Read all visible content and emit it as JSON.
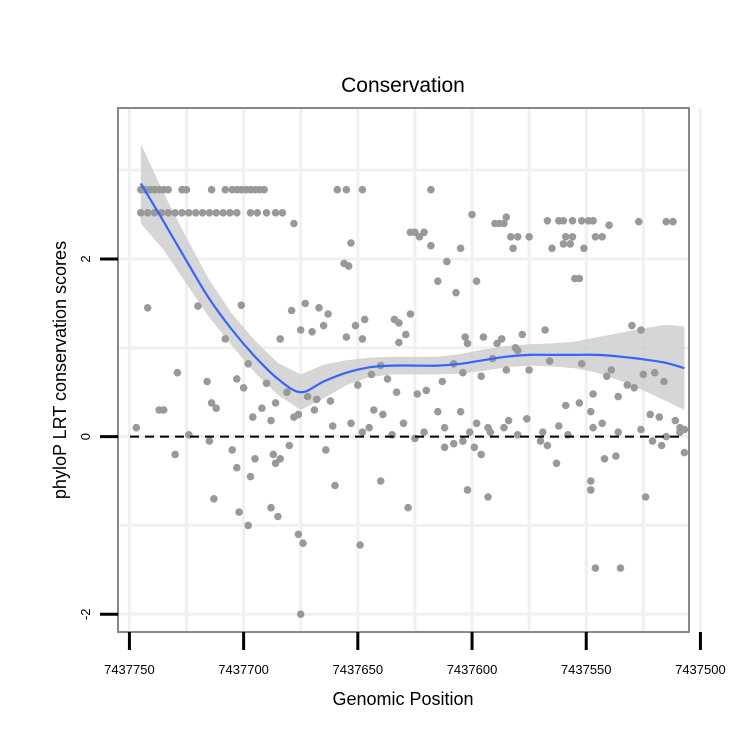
{
  "chart_data": {
    "type": "scatter",
    "title": "Conservation",
    "xlabel": "Genomic Position",
    "ylabel": "phyloP LRT conservation scores",
    "xlim": [
      7437755,
      7437505
    ],
    "ylim": [
      -2.2,
      3.7
    ],
    "x_reversed": true,
    "grid": true,
    "reference_line": {
      "y": 0,
      "style": "dashed",
      "color": "#000000"
    },
    "x_ticks": [
      7437750,
      7437700,
      7437650,
      7437600,
      7437550,
      7437500
    ],
    "x_tick_labels": [
      "7437750",
      "7437700",
      "7437650",
      "7437600",
      "7437550",
      "7437500"
    ],
    "y_ticks": [
      -2,
      0,
      2
    ],
    "y_tick_labels": [
      "-2",
      "0",
      "2"
    ],
    "colors": {
      "points": "#999999",
      "smooth_line": "#3366ff",
      "confidence_band": "#cccccc",
      "panel_border": "#888888",
      "grid": "#f0f0f0"
    },
    "smooth": {
      "x": [
        7437745,
        7437735,
        7437725,
        7437715,
        7437705,
        7437695,
        7437685,
        7437675,
        7437665,
        7437655,
        7437645,
        7437635,
        7437625,
        7437615,
        7437605,
        7437595,
        7437585,
        7437575,
        7437565,
        7437555,
        7437545,
        7437535,
        7437525,
        7437515,
        7437507
      ],
      "y": [
        2.85,
        2.42,
        1.98,
        1.55,
        1.2,
        0.9,
        0.65,
        0.5,
        0.62,
        0.72,
        0.78,
        0.8,
        0.8,
        0.8,
        0.82,
        0.86,
        0.9,
        0.92,
        0.92,
        0.92,
        0.92,
        0.9,
        0.87,
        0.83,
        0.77
      ],
      "lower": [
        2.4,
        2.1,
        1.72,
        1.34,
        1.02,
        0.72,
        0.47,
        0.3,
        0.43,
        0.58,
        0.67,
        0.7,
        0.7,
        0.7,
        0.71,
        0.74,
        0.78,
        0.8,
        0.79,
        0.77,
        0.72,
        0.63,
        0.52,
        0.4,
        0.3
      ],
      "upper": [
        3.3,
        2.74,
        2.24,
        1.76,
        1.38,
        1.08,
        0.83,
        0.7,
        0.81,
        0.86,
        0.89,
        0.9,
        0.9,
        0.9,
        0.93,
        0.98,
        1.02,
        1.04,
        1.05,
        1.07,
        1.12,
        1.17,
        1.22,
        1.26,
        1.24
      ]
    },
    "points": [
      [
        7437745,
        2.78
      ],
      [
        7437743,
        2.78
      ],
      [
        7437741,
        2.78
      ],
      [
        7437739,
        2.78
      ],
      [
        7437737,
        2.78
      ],
      [
        7437735,
        2.78
      ],
      [
        7437733,
        2.78
      ],
      [
        7437727,
        2.78
      ],
      [
        7437725,
        2.78
      ],
      [
        7437714,
        2.78
      ],
      [
        7437708,
        2.78
      ],
      [
        7437705,
        2.78
      ],
      [
        7437703,
        2.78
      ],
      [
        7437701,
        2.78
      ],
      [
        7437699,
        2.78
      ],
      [
        7437697,
        2.78
      ],
      [
        7437695,
        2.78
      ],
      [
        7437693,
        2.78
      ],
      [
        7437691,
        2.78
      ],
      [
        7437659,
        2.78
      ],
      [
        7437648,
        2.78
      ],
      [
        7437618,
        2.78
      ],
      [
        7437745,
        2.52
      ],
      [
        7437742,
        2.52
      ],
      [
        7437739,
        2.52
      ],
      [
        7437736,
        2.52
      ],
      [
        7437733,
        2.52
      ],
      [
        7437730,
        2.52
      ],
      [
        7437727,
        2.52
      ],
      [
        7437724,
        2.52
      ],
      [
        7437721,
        2.52
      ],
      [
        7437718,
        2.52
      ],
      [
        7437715,
        2.52
      ],
      [
        7437712,
        2.52
      ],
      [
        7437709,
        2.52
      ],
      [
        7437706,
        2.52
      ],
      [
        7437703,
        2.52
      ],
      [
        7437697,
        2.52
      ],
      [
        7437694,
        2.52
      ],
      [
        7437690,
        2.52
      ],
      [
        7437686,
        2.52
      ],
      [
        7437683,
        2.52
      ],
      [
        7437527,
        2.42
      ],
      [
        7437515,
        2.42
      ],
      [
        7437512,
        2.42
      ],
      [
        7437655,
        2.78
      ],
      [
        7437585,
        2.47
      ],
      [
        7437567,
        2.43
      ],
      [
        7437562,
        2.43
      ],
      [
        7437560,
        2.43
      ],
      [
        7437556,
        2.43
      ],
      [
        7437552,
        2.43
      ],
      [
        7437549,
        2.43
      ],
      [
        7437547,
        2.43
      ],
      [
        7437600,
        2.5
      ],
      [
        7437590,
        2.4
      ],
      [
        7437588,
        2.4
      ],
      [
        7437586,
        2.4
      ],
      [
        7437540,
        2.38
      ],
      [
        7437627,
        2.3
      ],
      [
        7437625,
        2.3
      ],
      [
        7437621,
        2.3
      ],
      [
        7437678,
        2.4
      ],
      [
        7437546,
        2.25
      ],
      [
        7437543,
        2.25
      ],
      [
        7437618,
        2.15
      ],
      [
        7437623,
        2.25
      ],
      [
        7437583,
        2.25
      ],
      [
        7437580,
        2.25
      ],
      [
        7437575,
        2.25
      ],
      [
        7437559,
        2.25
      ],
      [
        7437556,
        2.25
      ],
      [
        7437557,
        2.17
      ],
      [
        7437560,
        2.17
      ],
      [
        7437605,
        2.12
      ],
      [
        7437565,
        2.12
      ],
      [
        7437653,
        2.18
      ],
      [
        7437582,
        2.12
      ],
      [
        7437551,
        2.12
      ],
      [
        7437611,
        1.97
      ],
      [
        7437656,
        1.95
      ],
      [
        7437654,
        1.92
      ],
      [
        7437555,
        1.78
      ],
      [
        7437553,
        1.78
      ],
      [
        7437615,
        1.75
      ],
      [
        7437598,
        1.75
      ],
      [
        7437607,
        1.62
      ],
      [
        7437679,
        1.42
      ],
      [
        7437673,
        1.5
      ],
      [
        7437667,
        1.45
      ],
      [
        7437701,
        1.48
      ],
      [
        7437720,
        1.47
      ],
      [
        7437742,
        1.45
      ],
      [
        7437663,
        1.38
      ],
      [
        7437627,
        1.38
      ],
      [
        7437634,
        1.32
      ],
      [
        7437665,
        1.25
      ],
      [
        7437655,
        1.12
      ],
      [
        7437684,
        1.1
      ],
      [
        7437675,
        1.2
      ],
      [
        7437670,
        1.18
      ],
      [
        7437629,
        1.15
      ],
      [
        7437632,
        1.28
      ],
      [
        7437651,
        1.25
      ],
      [
        7437647,
        1.32
      ],
      [
        7437648,
        1.1
      ],
      [
        7437632,
        1.06
      ],
      [
        7437602,
        1.05
      ],
      [
        7437603,
        1.12
      ],
      [
        7437578,
        1.15
      ],
      [
        7437587,
        1.1
      ],
      [
        7437568,
        1.2
      ],
      [
        7437595,
        1.12
      ],
      [
        7437589,
        1.05
      ],
      [
        7437580,
        0.97
      ],
      [
        7437530,
        1.25
      ],
      [
        7437526,
        1.2
      ],
      [
        7437581,
        1.0
      ],
      [
        7437708,
        1.1
      ],
      [
        7437698,
        0.82
      ],
      [
        7437703,
        0.65
      ],
      [
        7437700,
        0.55
      ],
      [
        7437690,
        0.6
      ],
      [
        7437681,
        0.5
      ],
      [
        7437672,
        0.45
      ],
      [
        7437668,
        0.42
      ],
      [
        7437662,
        0.4
      ],
      [
        7437640,
        0.8
      ],
      [
        7437644,
        0.7
      ],
      [
        7437650,
        0.58
      ],
      [
        7437637,
        0.65
      ],
      [
        7437633,
        0.5
      ],
      [
        7437620,
        0.52
      ],
      [
        7437624,
        0.48
      ],
      [
        7437613,
        0.62
      ],
      [
        7437608,
        0.82
      ],
      [
        7437604,
        0.72
      ],
      [
        7437596,
        0.68
      ],
      [
        7437591,
        0.88
      ],
      [
        7437585,
        0.75
      ],
      [
        7437575,
        0.75
      ],
      [
        7437566,
        0.85
      ],
      [
        7437552,
        0.82
      ],
      [
        7437541,
        0.68
      ],
      [
        7437539,
        0.75
      ],
      [
        7437525,
        0.7
      ],
      [
        7437520,
        0.72
      ],
      [
        7437516,
        0.62
      ],
      [
        7437532,
        0.58
      ],
      [
        7437547,
        0.48
      ],
      [
        7437735,
        0.3
      ],
      [
        7437729,
        0.72
      ],
      [
        7437716,
        0.62
      ],
      [
        7437714,
        0.38
      ],
      [
        7437712,
        0.32
      ],
      [
        7437696,
        0.22
      ],
      [
        7437692,
        0.32
      ],
      [
        7437688,
        0.18
      ],
      [
        7437678,
        0.22
      ],
      [
        7437669,
        0.3
      ],
      [
        7437653,
        0.15
      ],
      [
        7437645,
        0.1
      ],
      [
        7437643,
        0.3
      ],
      [
        7437639,
        0.25
      ],
      [
        7437630,
        0.15
      ],
      [
        7437621,
        0.05
      ],
      [
        7437615,
        0.28
      ],
      [
        7437605,
        0.28
      ],
      [
        7437598,
        0.15
      ],
      [
        7437593,
        0.1
      ],
      [
        7437584,
        0.18
      ],
      [
        7437576,
        0.2
      ],
      [
        7437562,
        0.12
      ],
      [
        7437559,
        0.35
      ],
      [
        7437553,
        0.38
      ],
      [
        7437548,
        0.28
      ],
      [
        7437543,
        0.15
      ],
      [
        7437536,
        0.45
      ],
      [
        7437529,
        0.55
      ],
      [
        7437522,
        0.25
      ],
      [
        7437518,
        0.22
      ],
      [
        7437511,
        0.18
      ],
      [
        7437509,
        0.1
      ],
      [
        7437747,
        0.1
      ],
      [
        7437737,
        0.3
      ],
      [
        7437724,
        0.02
      ],
      [
        7437686,
        0.38
      ],
      [
        7437676,
        0.25
      ],
      [
        7437661,
        0.12
      ],
      [
        7437648,
        0.05
      ],
      [
        7437635,
        0.02
      ],
      [
        7437625,
        -0.02
      ],
      [
        7437612,
        0.1
      ],
      [
        7437601,
        0.05
      ],
      [
        7437592,
        0.05
      ],
      [
        7437586,
        0.1
      ],
      [
        7437580,
        0.02
      ],
      [
        7437569,
        0.05
      ],
      [
        7437558,
        0.02
      ],
      [
        7437547,
        0.1
      ],
      [
        7437536,
        0.05
      ],
      [
        7437526,
        0.08
      ],
      [
        7437515,
        0.0
      ],
      [
        7437509,
        0.05
      ],
      [
        7437507,
        0.08
      ],
      [
        7437730,
        -0.2
      ],
      [
        7437715,
        -0.05
      ],
      [
        7437705,
        -0.15
      ],
      [
        7437703,
        -0.35
      ],
      [
        7437697,
        -0.45
      ],
      [
        7437695,
        -0.25
      ],
      [
        7437687,
        -0.2
      ],
      [
        7437686,
        -0.3
      ],
      [
        7437684,
        -0.25
      ],
      [
        7437680,
        -0.1
      ],
      [
        7437664,
        -0.15
      ],
      [
        7437612,
        -0.12
      ],
      [
        7437608,
        -0.08
      ],
      [
        7437604,
        -0.05
      ],
      [
        7437599,
        -0.12
      ],
      [
        7437596,
        -0.2
      ],
      [
        7437570,
        -0.05
      ],
      [
        7437567,
        -0.1
      ],
      [
        7437563,
        -0.3
      ],
      [
        7437548,
        -0.5
      ],
      [
        7437542,
        -0.25
      ],
      [
        7437521,
        -0.05
      ],
      [
        7437517,
        -0.1
      ],
      [
        7437507,
        -0.18
      ],
      [
        7437713,
        -0.7
      ],
      [
        7437702,
        -0.85
      ],
      [
        7437698,
        -1.0
      ],
      [
        7437688,
        -0.8
      ],
      [
        7437685,
        -0.9
      ],
      [
        7437676,
        -1.1
      ],
      [
        7437674,
        -1.2
      ],
      [
        7437660,
        -0.55
      ],
      [
        7437649,
        -1.22
      ],
      [
        7437640,
        -0.5
      ],
      [
        7437628,
        -0.8
      ],
      [
        7437602,
        -0.6
      ],
      [
        7437593,
        -0.68
      ],
      [
        7437548,
        -0.6
      ],
      [
        7437537,
        -0.22
      ],
      [
        7437524,
        -0.68
      ],
      [
        7437546,
        -1.48
      ],
      [
        7437535,
        -1.48
      ],
      [
        7437675,
        -2.0
      ]
    ]
  }
}
